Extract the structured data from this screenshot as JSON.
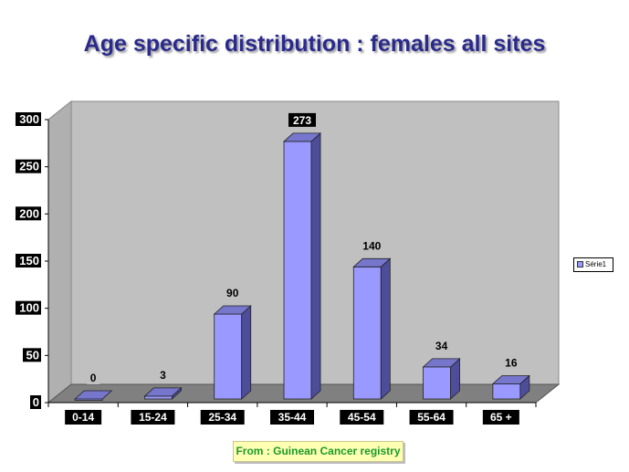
{
  "title": "Age specific distribution : females all sites",
  "source_note": "From : Guinean Cancer registry",
  "legend": {
    "label": "Série1"
  },
  "colors": {
    "bar_front": "#9999ff",
    "bar_side": "#4d4d99",
    "bar_top": "#7676cc",
    "wall": "#c0c0c0",
    "floor": "#808080",
    "title": "#2a2a8c"
  },
  "chart_data": {
    "type": "bar",
    "categories": [
      "0-14",
      "15-24",
      "25-34",
      "35-44",
      "45-54",
      "55-64",
      "65 +"
    ],
    "series": [
      {
        "name": "Série1",
        "values": [
          0,
          3,
          90,
          273,
          140,
          34,
          16
        ]
      }
    ],
    "ylim": [
      0,
      300
    ],
    "yticks": [
      "0",
      "50",
      "100",
      "150",
      "200",
      "250",
      "300"
    ],
    "data_labels": [
      "0",
      "3",
      "90",
      "273",
      "140",
      "34",
      "16"
    ],
    "grid": false,
    "legend_position": "right",
    "style": "3d-column"
  }
}
